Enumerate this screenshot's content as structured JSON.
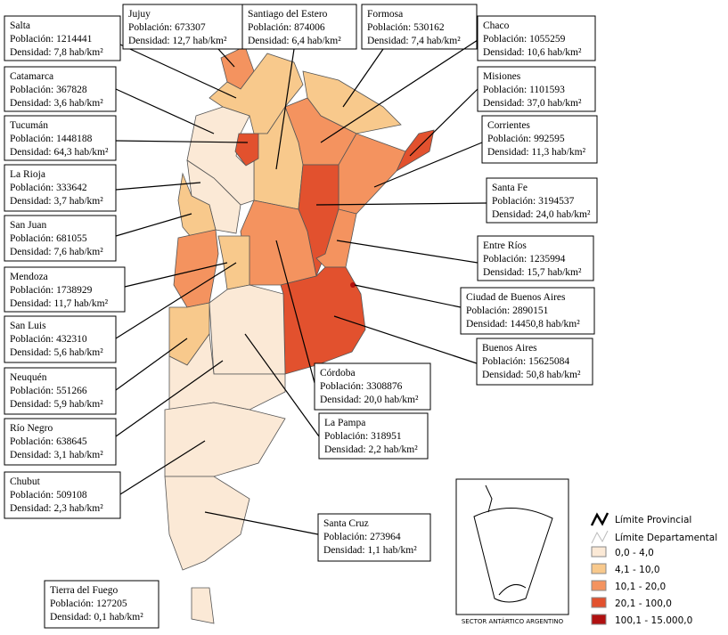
{
  "provinces": [
    {
      "name": "Salta",
      "population": "Población: 1214441",
      "density": "Densidad: 7,8 hab/km²"
    },
    {
      "name": "Jujuy",
      "population": "Población: 673307",
      "density": "Densidad: 12,7 hab/km²"
    },
    {
      "name": "Santiago del Estero",
      "population": "Población: 874006",
      "density": "Densidad: 6,4 hab/km²"
    },
    {
      "name": "Formosa",
      "population": "Población: 530162",
      "density": "Densidad: 7,4 hab/km²"
    },
    {
      "name": "Chaco",
      "population": "Población: 1055259",
      "density": "Densidad: 10,6 hab/km²"
    },
    {
      "name": "Catamarca",
      "population": "Población: 367828",
      "density": "Densidad: 3,6 hab/km²"
    },
    {
      "name": "Misiones",
      "population": "Población: 1101593",
      "density": "Densidad: 37,0  hab/km²"
    },
    {
      "name": "Tucumán",
      "population": "Población: 1448188",
      "density": "Densidad: 64,3 hab/km²"
    },
    {
      "name": "Corrientes",
      "population": "Población: 992595",
      "density": "Densidad: 11,3 hab/km²"
    },
    {
      "name": "La Rioja",
      "population": "Población: 333642",
      "density": "Densidad: 3,7 hab/km²"
    },
    {
      "name": "Santa Fe",
      "population": "Población: 3194537",
      "density": "Densidad: 24,0 hab/km²"
    },
    {
      "name": "San Juan",
      "population": "Población: 681055",
      "density": "Densidad: 7,6 hab/km²"
    },
    {
      "name": "Entre Ríos",
      "population": "Población: 1235994",
      "density": "Densidad: 15,7 hab/km²"
    },
    {
      "name": "Mendoza",
      "population": "Población: 1738929",
      "density": "Densidad: 11,7 hab/km²"
    },
    {
      "name": "Ciudad de Buenos Aires",
      "population": "Población: 2890151",
      "density": "Densidad: 14450,8 hab/km²"
    },
    {
      "name": "San Luis",
      "population": "Población: 432310",
      "density": "Densidad: 5,6 hab/km²"
    },
    {
      "name": "Buenos Aires",
      "population": "Población: 15625084",
      "density": "Densidad: 50,8 hab/km²"
    },
    {
      "name": "Neuquén",
      "population": "Población: 551266",
      "density": "Densidad: 5,9 hab/km²"
    },
    {
      "name": "Córdoba",
      "population": "Población: 3308876",
      "density": "Densidad: 20,0 hab/km²"
    },
    {
      "name": "Río Negro",
      "population": "Población: 638645",
      "density": "Densidad: 3,1 hab/km²"
    },
    {
      "name": "La Pampa",
      "population": "Población: 318951",
      "density": "Densidad: 2,2 hab/km²"
    },
    {
      "name": "Chubut",
      "population": "Población: 509108",
      "density": "Densidad: 2,3 hab/km²"
    },
    {
      "name": "Santa Cruz",
      "population": "Población: 273964",
      "density": "Densidad: 1,1 hab/km²"
    },
    {
      "name": "Tierra del Fuego",
      "population": "Población: 127205",
      "density": "Densidad: 0,1 hab/km²"
    }
  ],
  "legend": {
    "provincial": "Límite Provincial",
    "departmental": "Límite Departamental",
    "classes": [
      {
        "label": "0,0 - 4,0",
        "color": "#fbe9d6"
      },
      {
        "label": "4,1 - 10,0",
        "color": "#f8c98c"
      },
      {
        "label": "10,1 - 20,0",
        "color": "#f4935f"
      },
      {
        "label": "20,1 - 100,0",
        "color": "#e2512e"
      },
      {
        "label": "100,1 - 15.000,0",
        "color": "#b01010"
      }
    ]
  },
  "inset_label": "SECTOR ANTÁRTICO ARGENTINO"
}
